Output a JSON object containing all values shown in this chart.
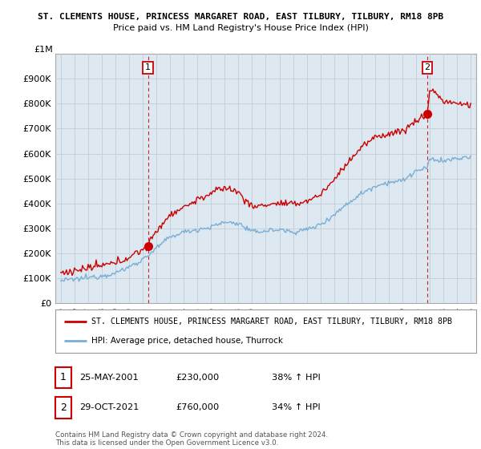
{
  "title1": "ST. CLEMENTS HOUSE, PRINCESS MARGARET ROAD, EAST TILBURY, TILBURY, RM18 8PB",
  "title2": "Price paid vs. HM Land Registry's House Price Index (HPI)",
  "ylim": [
    0,
    1000000
  ],
  "yticks": [
    0,
    100000,
    200000,
    300000,
    400000,
    500000,
    600000,
    700000,
    800000,
    900000
  ],
  "ytick_labels": [
    "£0",
    "£100K",
    "£200K",
    "£300K",
    "£400K",
    "£500K",
    "£600K",
    "£700K",
    "£800K",
    "£900K"
  ],
  "top_label": "£1M",
  "sale1_date": 2001.38,
  "sale1_price": 230000,
  "sale2_date": 2021.83,
  "sale2_price": 760000,
  "hpi_color": "#7aaed6",
  "price_color": "#cc0000",
  "chart_bg": "#dde8f0",
  "legend_line1": "ST. CLEMENTS HOUSE, PRINCESS MARGARET ROAD, EAST TILBURY, TILBURY, RM18 8PB",
  "legend_line2": "HPI: Average price, detached house, Thurrock",
  "annotation1_date": "25-MAY-2001",
  "annotation1_price": "£230,000",
  "annotation1_hpi": "38% ↑ HPI",
  "annotation2_date": "29-OCT-2021",
  "annotation2_price": "£760,000",
  "annotation2_hpi": "34% ↑ HPI",
  "footnote": "Contains HM Land Registry data © Crown copyright and database right 2024.\nThis data is licensed under the Open Government Licence v3.0.",
  "background_color": "#ffffff",
  "grid_color": "#c0cdd6"
}
